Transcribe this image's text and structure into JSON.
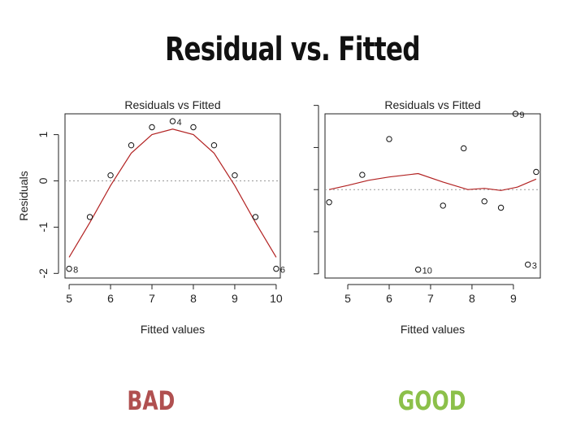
{
  "slide_title": "Residual vs. Fitted",
  "verdicts": {
    "bad": "BAD",
    "good": "GOOD"
  },
  "colors": {
    "bad": "#b05050",
    "good": "#8cc04a",
    "fit_line": "#b22222",
    "zero_line": "#999999"
  },
  "chart_data": [
    {
      "type": "scatter",
      "title": "Residuals vs Fitted",
      "xlabel": "Fitted values",
      "ylabel": "Residuals",
      "xlim": [
        4.9,
        10.1
      ],
      "ylim": [
        -2.1,
        1.45
      ],
      "xticks": [
        5,
        6,
        7,
        8,
        9,
        10
      ],
      "yticks": [
        -2,
        -1,
        0,
        1
      ],
      "show_y_tick_labels": true,
      "zero_line": true,
      "points": [
        {
          "x": 5.0,
          "y": -1.9,
          "label": "8"
        },
        {
          "x": 5.5,
          "y": -0.78
        },
        {
          "x": 6.0,
          "y": 0.12
        },
        {
          "x": 6.5,
          "y": 0.77
        },
        {
          "x": 7.0,
          "y": 1.16
        },
        {
          "x": 7.5,
          "y": 1.29,
          "label": "4"
        },
        {
          "x": 8.0,
          "y": 1.16
        },
        {
          "x": 8.5,
          "y": 0.77
        },
        {
          "x": 9.0,
          "y": 0.12
        },
        {
          "x": 9.5,
          "y": -0.78
        },
        {
          "x": 10.0,
          "y": -1.9,
          "label": "6"
        }
      ],
      "smooth": [
        [
          5.0,
          -1.65
        ],
        [
          5.5,
          -0.9
        ],
        [
          6.0,
          -0.1
        ],
        [
          6.5,
          0.6
        ],
        [
          7.0,
          1.0
        ],
        [
          7.5,
          1.12
        ],
        [
          8.0,
          1.0
        ],
        [
          8.5,
          0.6
        ],
        [
          9.0,
          -0.1
        ],
        [
          9.5,
          -0.9
        ],
        [
          10.0,
          -1.65
        ]
      ]
    },
    {
      "type": "scatter",
      "title": "Residuals vs Fitted",
      "xlabel": "Fitted values",
      "ylabel": "",
      "xlim": [
        4.45,
        9.65
      ],
      "ylim": [
        -2.1,
        1.8
      ],
      "xticks": [
        5,
        6,
        7,
        8,
        9
      ],
      "yticks": [
        -2,
        -1,
        0,
        1,
        2
      ],
      "show_y_tick_labels": false,
      "zero_line": true,
      "points": [
        {
          "x": 4.55,
          "y": -0.3
        },
        {
          "x": 5.35,
          "y": 0.35
        },
        {
          "x": 6.0,
          "y": 1.2
        },
        {
          "x": 6.7,
          "y": -1.9,
          "label": "10"
        },
        {
          "x": 7.3,
          "y": -0.38
        },
        {
          "x": 7.8,
          "y": 0.98
        },
        {
          "x": 8.3,
          "y": -0.28
        },
        {
          "x": 8.7,
          "y": -0.43
        },
        {
          "x": 9.05,
          "y": 1.8,
          "label": "9"
        },
        {
          "x": 9.35,
          "y": -1.78,
          "label": "3"
        },
        {
          "x": 9.55,
          "y": 0.42
        }
      ],
      "smooth": [
        [
          4.55,
          0.0
        ],
        [
          5.0,
          0.1
        ],
        [
          5.5,
          0.22
        ],
        [
          6.0,
          0.3
        ],
        [
          6.7,
          0.38
        ],
        [
          7.3,
          0.18
        ],
        [
          7.9,
          0.0
        ],
        [
          8.3,
          0.03
        ],
        [
          8.7,
          -0.02
        ],
        [
          9.1,
          0.06
        ],
        [
          9.55,
          0.25
        ]
      ]
    }
  ]
}
